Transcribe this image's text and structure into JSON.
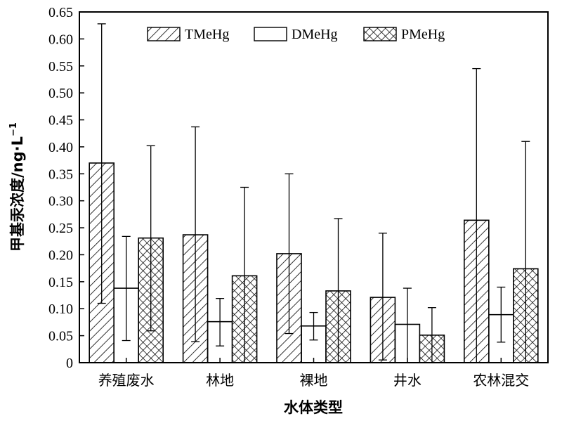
{
  "chart_data": {
    "type": "bar",
    "categories": [
      "养殖废水",
      "林地",
      "裸地",
      "井水",
      "农林混交"
    ],
    "series": [
      {
        "name": "TMeHg",
        "pattern": "diagonal-hatch",
        "values": [
          0.37,
          0.237,
          0.202,
          0.121,
          0.264
        ],
        "error_low": [
          0.11,
          0.039,
          0.054,
          0.005,
          0.0
        ],
        "error_high": [
          0.628,
          0.437,
          0.35,
          0.24,
          0.545
        ]
      },
      {
        "name": "DMeHg",
        "pattern": "empty",
        "values": [
          0.138,
          0.076,
          0.068,
          0.071,
          0.089
        ],
        "error_low": [
          0.041,
          0.031,
          0.042,
          0.0,
          0.038
        ],
        "error_high": [
          0.234,
          0.119,
          0.093,
          0.138,
          0.14
        ]
      },
      {
        "name": "PMeHg",
        "pattern": "crosshatch",
        "values": [
          0.231,
          0.161,
          0.133,
          0.051,
          0.174
        ],
        "error_low": [
          0.059,
          0.0,
          0.0,
          0.0,
          0.0
        ],
        "error_high": [
          0.402,
          0.325,
          0.267,
          0.102,
          0.41
        ]
      }
    ],
    "xlabel": "水体类型",
    "ylabel": "甲基汞浓度/ng·L",
    "ylabel_superscript": "−1",
    "ylim": [
      0,
      0.65
    ],
    "yticks": [
      "0",
      "0.05",
      "0.10",
      "0.15",
      "0.20",
      "0.25",
      "0.30",
      "0.35",
      "0.40",
      "0.45",
      "0.50",
      "0.55",
      "0.60",
      "0.65"
    ],
    "legend_position": "top",
    "grid": false
  }
}
